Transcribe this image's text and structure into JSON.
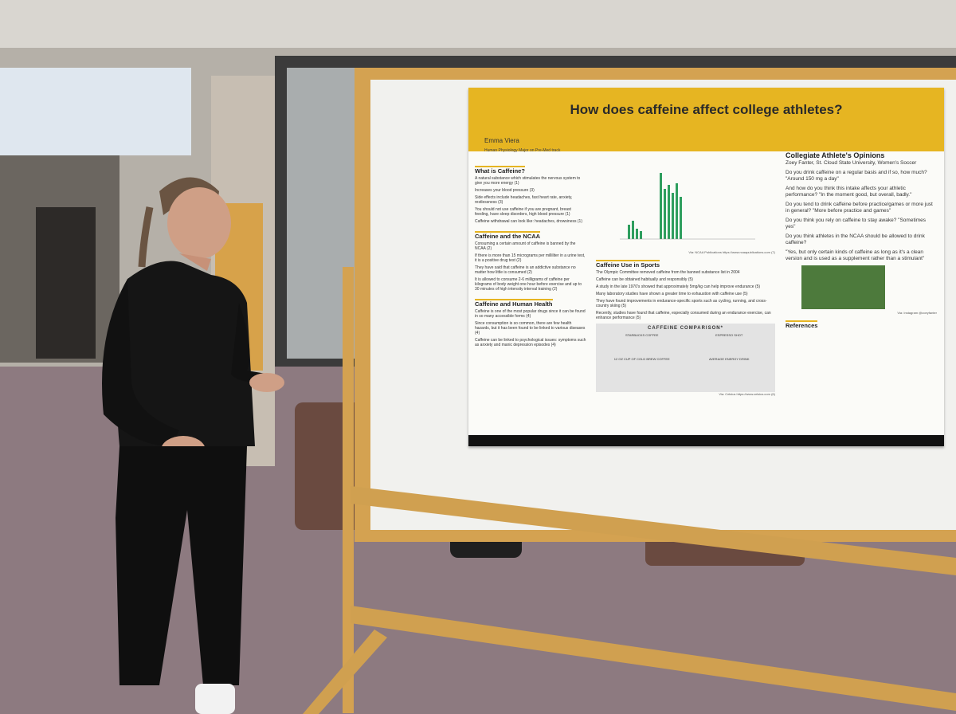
{
  "poster": {
    "title": "How does caffeine affect college athletes?",
    "author": "Emma Viera",
    "subtitle": "Human Physiology Major on Pre-Med track",
    "sections": [
      {
        "heading": "What is Caffeine?",
        "items": [
          "A natural substance which stimulates the nervous system to give you more energy (1)",
          "Increases your blood pressure (3)",
          "Side effects include headaches, fast heart rate, anxiety, restlessness (3)",
          "You should not use caffeine if you are pregnant, breast feeding, have sleep disorders, high blood pressure (1)",
          "Caffeine withdrawal can look like: headaches, drowsiness (1)"
        ]
      },
      {
        "heading": "Caffeine and the NCAA",
        "items": [
          "Consuming a certain amount of caffeine is banned by the NCAA (2)",
          "If there is more than 15 micrograms per milliliter in a urine test, it is a positive drug test (2)",
          "They have said that caffeine is an addictive substance no matter how little is consumed (2)",
          "It is allowed to consume 2-6 milligrams of caffeine per kilograms of body weight one hour before exercise and up to 30 minutes of high intensity interval training (2)"
        ]
      },
      {
        "heading": "Caffeine and Human Health",
        "items": [
          "Caffeine is one of the most popular drugs since it can be found in so many accessible forms (4)",
          "Since consumption is so common, there are few health hazards, but it has been found to be linked to various diseases (4)",
          "Caffeine can be linked to psychological issues: symptoms such as anxiety and manic depression episodes (4)"
        ]
      },
      {
        "heading": "Caffeine Use in Sports",
        "items": [
          "The Olympic Committee removed caffeine from the banned substance list in 2004",
          "Caffeine can be obtained habitually and responsibly (5)",
          "A study in the late 1970's showed that approximately 5mg/kg can help improve endurance (5)",
          "Many laboratory studies have shown a greater time to exhaustion with caffeine use (5)",
          "They have found improvements in endurance-specific sports such as cycling, running, and cross-country skiing (5)",
          "Recently, studies have found that caffeine, especially consumed during an endurance exercise, can enhance performance (5)"
        ]
      }
    ],
    "chart_credit": "Via: NCAA Publications https://www.ncaapublications.com (7)",
    "comparison": {
      "title": "CAFFEINE COMPARISON*",
      "labels": [
        "STARBUCKS COFFEE",
        "ESPRESSO SHOT",
        "12 OZ CUP OF COLD BREW COFFEE",
        "AVERAGE ENERGY DRINK"
      ],
      "credit": "Via: Celsius https://www.celsius.com (6)"
    },
    "opinions": {
      "heading": "Collegiate Athlete's Opinions",
      "athlete": "Zoey Fanter, St. Cloud State University, Women's Soccer",
      "qa": [
        "Do you drink caffeine on a regular basis and if so, how much? \"Around 150 mg a day\"",
        "And how do you think this intake affects your athletic performance? \"In the moment good, but overall, badly.\"",
        "Do you tend to drink caffeine before practice/games or more just in general? \"More before practice and games\"",
        "Do you think you rely on caffeine to stay awake? \"Sometimes yes\"",
        "Do you think athletes in the NCAA should be allowed to drink caffeine?",
        "\"Yes, but only certain kinds of caffeine as long as it's a clean version and is used as a supplement rather than a stimulant\""
      ]
    },
    "photo_credit": "Via: Instagram @zoeyfanter",
    "references_heading": "References"
  }
}
